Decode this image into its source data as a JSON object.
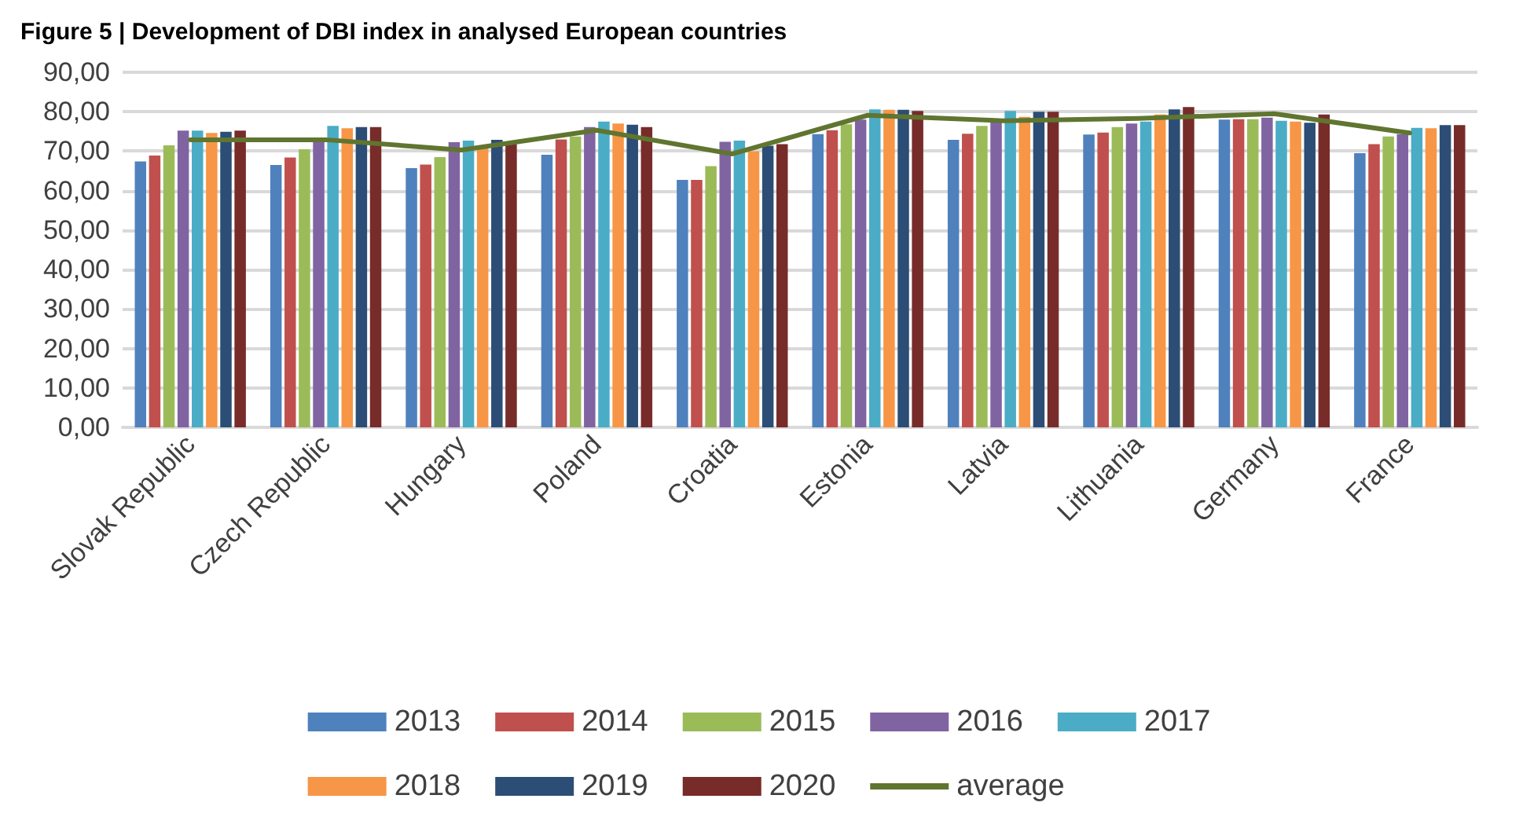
{
  "chart_data": {
    "type": "bar",
    "title": "Figure 5 | Development of DBI index in analysed European countries",
    "categories": [
      "Slovak Republic",
      "Czech Republic",
      "Hungary",
      "Poland",
      "Croatia",
      "Estonia",
      "Latvia",
      "Lithuania",
      "Germany",
      "France"
    ],
    "series": [
      {
        "name": "2013",
        "color": "#4f81bd",
        "values": [
          67.4,
          66.5,
          65.7,
          69.1,
          62.7,
          74.3,
          72.9,
          74.2,
          78.0,
          69.5
        ]
      },
      {
        "name": "2014",
        "color": "#c0504d",
        "values": [
          68.9,
          68.4,
          66.6,
          73.0,
          62.7,
          75.3,
          74.4,
          74.7,
          78.1,
          71.8
        ]
      },
      {
        "name": "2015",
        "color": "#9bbb59",
        "values": [
          71.5,
          70.5,
          68.5,
          73.7,
          66.2,
          76.8,
          76.4,
          76.1,
          78.1,
          73.7
        ]
      },
      {
        "name": "2016",
        "color": "#8064a2",
        "values": [
          75.2,
          72.4,
          72.3,
          76.1,
          72.4,
          78.0,
          77.5,
          77.0,
          78.5,
          74.3
        ]
      },
      {
        "name": "2017",
        "color": "#4bacc6",
        "values": [
          75.2,
          76.4,
          72.7,
          77.5,
          72.7,
          80.6,
          80.2,
          77.5,
          77.7,
          75.9
        ]
      },
      {
        "name": "2018",
        "color": "#f79646",
        "values": [
          74.6,
          75.8,
          71.5,
          77.0,
          70.0,
          80.5,
          78.7,
          79.3,
          77.5,
          75.8
        ]
      },
      {
        "name": "2019",
        "color": "#2c4d75",
        "values": [
          74.9,
          76.1,
          72.9,
          76.7,
          71.4,
          80.5,
          80.0,
          80.6,
          77.2,
          76.6
        ]
      },
      {
        "name": "2020",
        "color": "#772c2a",
        "values": [
          75.2,
          76.1,
          71.8,
          76.1,
          71.8,
          80.2,
          80.0,
          81.2,
          79.3,
          76.6
        ]
      },
      {
        "name": "average",
        "type": "line",
        "color": "#60752f",
        "values": [
          72.9,
          72.9,
          70.3,
          75.3,
          69.3,
          79.1,
          77.7,
          78.3,
          79.5,
          74.6
        ]
      }
    ],
    "ylim": [
      0,
      90
    ],
    "yticks": [
      {
        "value": 0,
        "label": "0,00"
      },
      {
        "value": 10,
        "label": "10,00"
      },
      {
        "value": 20,
        "label": "20,00"
      },
      {
        "value": 30,
        "label": "30,00"
      },
      {
        "value": 40,
        "label": "40,00"
      },
      {
        "value": 50,
        "label": "50,00"
      },
      {
        "value": 60,
        "label": "60,00"
      },
      {
        "value": 70,
        "label": "70,00"
      },
      {
        "value": 80,
        "label": "80,00"
      },
      {
        "value": 90,
        "label": "90,00"
      }
    ],
    "grid": "y",
    "legend": "bottom",
    "marker": "none",
    "line_style": "solid"
  }
}
